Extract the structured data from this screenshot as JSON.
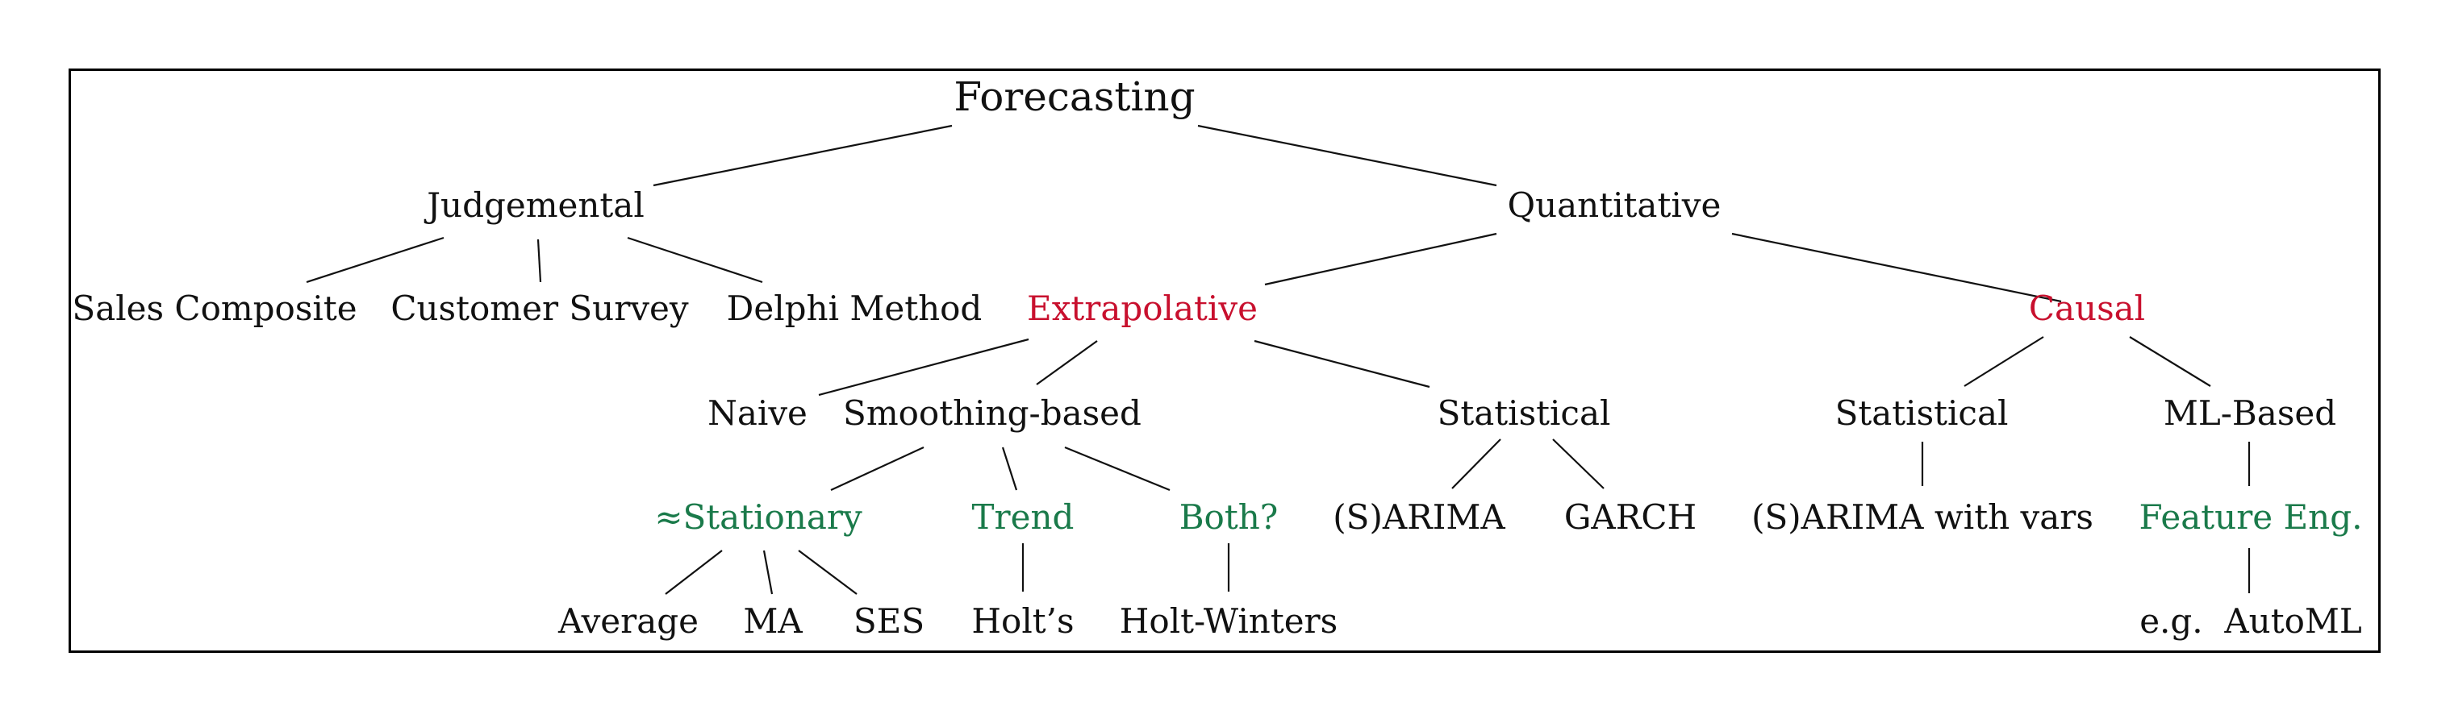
{
  "colors": {
    "black": "#111111",
    "red": "#c8102e",
    "green": "#1a7a4a"
  },
  "nodes": {
    "forecasting": "Forecasting",
    "judgemental": "Judgemental",
    "quantitative": "Quantitative",
    "sales_composite": "Sales Composite",
    "customer_survey": "Customer Survey",
    "delphi_method": "Delphi Method",
    "extrapolative": "Extrapolative",
    "causal": "Causal",
    "naive": "Naive",
    "smoothing_based": "Smoothing-based",
    "statistical_extrap": "Statistical",
    "statistical_causal": "Statistical",
    "ml_based": "ML-Based",
    "stationary": "≈Stationary",
    "trend": "Trend",
    "both": "Both?",
    "sarima": "(S)ARIMA",
    "garch": "GARCH",
    "sarima_vars": "(S)ARIMA with vars",
    "feature_eng": "Feature Eng.",
    "average": "Average",
    "ma": "MA",
    "ses": "SES",
    "holts": "Holt’s",
    "holt_winters": "Holt-Winters",
    "automl": "e.g.  AutoML"
  }
}
